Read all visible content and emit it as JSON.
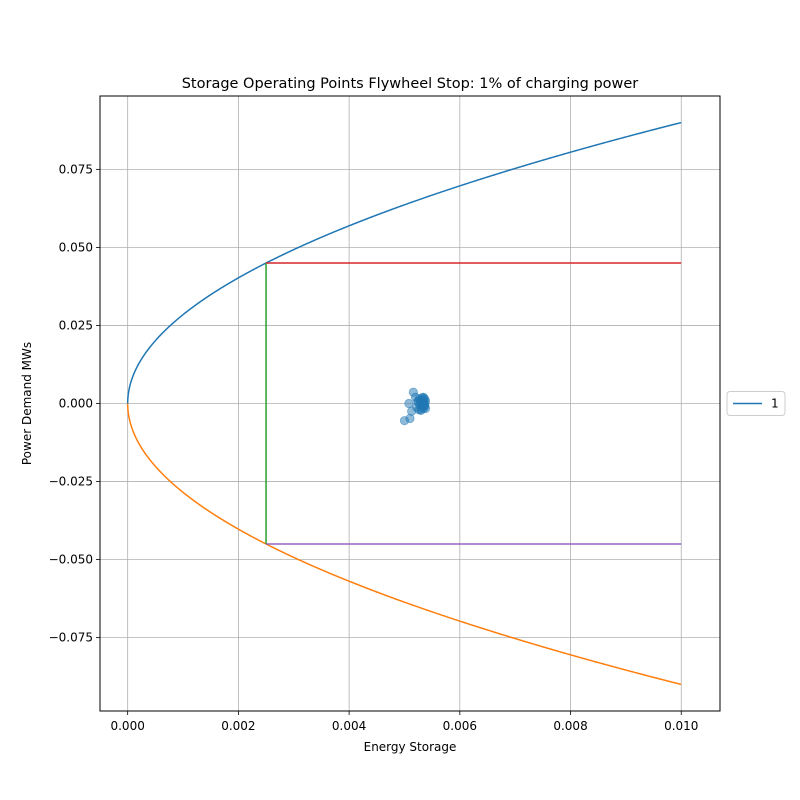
{
  "chart_data": {
    "type": "line",
    "title": "Storage Operating Points Flywheel Stop: 1% of charging power",
    "xlabel": "Energy Storage",
    "ylabel": "Power Demand MWs",
    "xlim": [
      -0.0005,
      0.0107
    ],
    "ylim": [
      -0.0985,
      0.0985
    ],
    "xticks": [
      "0.000",
      "0.002",
      "0.004",
      "0.006",
      "0.008",
      "0.010"
    ],
    "xtick_values": [
      0.0,
      0.002,
      0.004,
      0.006,
      0.008,
      0.01
    ],
    "yticks": [
      "−0.075",
      "−0.050",
      "−0.025",
      "0.000",
      "0.025",
      "0.050",
      "0.075"
    ],
    "ytick_values": [
      -0.075,
      -0.05,
      -0.025,
      0.0,
      0.025,
      0.05,
      0.075
    ],
    "grid": true,
    "legend_position": "center-right-outside",
    "series": [
      {
        "name": "1",
        "kind": "curve",
        "formula": "0.9*sqrt(x)",
        "x_range": [
          0.0,
          0.01
        ],
        "color": "#1f77b4"
      },
      {
        "kind": "curve",
        "formula": "-0.9*sqrt(x)",
        "x_range": [
          0.0,
          0.01
        ],
        "color": "#ff7f0e"
      },
      {
        "kind": "segment",
        "x": [
          0.0025,
          0.0025
        ],
        "y": [
          -0.045,
          0.045
        ],
        "color": "#2ca02c"
      },
      {
        "kind": "segment",
        "x": [
          0.0025,
          0.01
        ],
        "y": [
          0.045,
          0.045
        ],
        "color": "#d62728"
      },
      {
        "kind": "segment",
        "x": [
          0.0025,
          0.01
        ],
        "y": [
          -0.045,
          -0.045
        ],
        "color": "#9467bd"
      }
    ],
    "scatter": {
      "color": "#1f77b4",
      "opacity": 0.5,
      "points": [
        [
          0.005,
          -0.0055
        ],
        [
          0.0051,
          -0.0048
        ],
        [
          0.00508,
          0.0
        ],
        [
          0.00513,
          -0.0025
        ],
        [
          0.00516,
          0.0036
        ],
        [
          0.0052,
          0.002
        ],
        [
          0.00522,
          -0.0012
        ],
        [
          0.00524,
          0.0008
        ],
        [
          0.00526,
          -0.002
        ],
        [
          0.00527,
          0.0015
        ],
        [
          0.00528,
          -0.0005
        ],
        [
          0.00529,
          0.001
        ],
        [
          0.0053,
          -0.0018
        ],
        [
          0.00531,
          0.0003
        ],
        [
          0.00532,
          0.0018
        ],
        [
          0.00533,
          -0.001
        ],
        [
          0.00534,
          0.0006
        ],
        [
          0.00535,
          -0.0014
        ],
        [
          0.00535,
          0.0012
        ],
        [
          0.00536,
          -0.0004
        ],
        [
          0.00536,
          0.0016
        ],
        [
          0.00537,
          -0.0008
        ],
        [
          0.00537,
          0.0002
        ],
        [
          0.00538,
          -0.0016
        ],
        [
          0.00538,
          0.0009
        ],
        [
          0.00534,
          0.002
        ],
        [
          0.0053,
          -0.0022
        ],
        [
          0.00525,
          0.0004
        ]
      ]
    }
  }
}
